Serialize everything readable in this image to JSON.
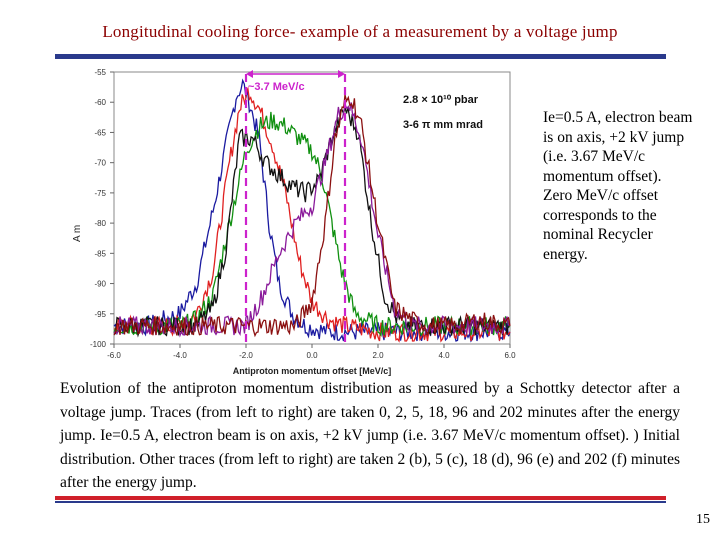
{
  "slide": {
    "title": "Longitudinal cooling force- example of a measurement by a voltage jump",
    "side_note": "Ie=0.5 A, electron beam is on axis, +2 kV jump (i.e. 3.67 MeV/c momentum offset). Zero MeV/c offset corresponds to the nominal Recycler energy.",
    "caption": "Evolution of the antiproton momentum distribution as measured by a Schottky detector after a voltage jump. Traces (from left to right) are taken 0, 2, 5, 18, 96 and 202 minutes after the energy jump. Ie=0.5 A, electron beam is on axis, +2 kV jump (i.e. 3.67 MeV/c momentum offset). ) Initial distribution. Other traces (from left to right) are taken 2 (b), 5 (c), 18 (d), 96 (e) and 202 (f) minutes after the energy jump.",
    "page_number": "15"
  },
  "colors": {
    "title": "#8b0000",
    "top_bar": "#2a3a8c",
    "bottom_bar_red": "#d0202a",
    "annotation": "#cc22cc"
  },
  "chart_data": {
    "type": "line",
    "title": "",
    "xlabel": "Antiproton momentum offset [MeV/c]",
    "ylabel": "A m",
    "xlim": [
      -6.0,
      6.0
    ],
    "ylim": [
      -100,
      -55
    ],
    "x_ticks": [
      "-6.0",
      "-4.0",
      "-2.0",
      "0.0",
      "2.0",
      "4.0",
      "6.0"
    ],
    "y_ticks": [
      "-55",
      "-60",
      "-65",
      "-70",
      "-75",
      "-80",
      "-85",
      "-90",
      "-95",
      "-100"
    ],
    "annotations": {
      "offset_label": "~3.7 MeV/c",
      "pbar_label": "2.8 × 10¹⁰ pbar",
      "emittance_label": "3-6 π mm mrad",
      "left_marker_x": -2.0,
      "right_marker_x": 1.0
    },
    "series": [
      {
        "name": "0 min",
        "color": "#1a1aa0",
        "x": [
          -6,
          -5,
          -4.5,
          -4,
          -3.5,
          -3,
          -2.6,
          -2.3,
          -2.1,
          -1.9,
          -1.6,
          -1.3,
          -1,
          -0.6,
          -0.2,
          0.5,
          2,
          4,
          6
        ],
        "values": [
          -97,
          -97,
          -96,
          -95,
          -90,
          -78,
          -67,
          -59,
          -57,
          -60,
          -66,
          -80,
          -90,
          -95,
          -97,
          -98,
          -98,
          -98,
          -98
        ]
      },
      {
        "name": "2 min",
        "color": "#e02020",
        "x": [
          -6,
          -4,
          -3.5,
          -3,
          -2.5,
          -2.2,
          -1.9,
          -1.6,
          -1.2,
          -0.8,
          -0.4,
          0,
          0.5,
          1,
          2,
          4,
          6
        ],
        "values": [
          -97,
          -97,
          -95,
          -88,
          -70,
          -61,
          -58,
          -61,
          -67,
          -75,
          -86,
          -93,
          -96,
          -97,
          -98,
          -98,
          -98
        ]
      },
      {
        "name": "5 min",
        "color": "#109010",
        "x": [
          -6,
          -4,
          -3.5,
          -3,
          -2.5,
          -2,
          -1.6,
          -1.2,
          -0.8,
          -0.4,
          0,
          0.3,
          0.6,
          0.9,
          1.3,
          2,
          4,
          6
        ],
        "values": [
          -97,
          -97,
          -96,
          -92,
          -80,
          -68,
          -64,
          -63,
          -64,
          -66,
          -68,
          -72,
          -80,
          -88,
          -95,
          -97,
          -97,
          -97
        ]
      },
      {
        "name": "18 min",
        "color": "#111111",
        "x": [
          -6,
          -3.5,
          -3,
          -2.6,
          -2.2,
          -1.8,
          -1.4,
          -1,
          -0.6,
          -0.2,
          0.2,
          0.6,
          1,
          1.4,
          1.8,
          2.2,
          2.6,
          3,
          4,
          6
        ],
        "values": [
          -97,
          -97,
          -94,
          -84,
          -66,
          -66,
          -70,
          -72,
          -74,
          -75,
          -73,
          -66,
          -61,
          -65,
          -80,
          -92,
          -96,
          -97,
          -97,
          -97
        ]
      },
      {
        "name": "96 min",
        "color": "#8a1a9a",
        "x": [
          -6,
          -2,
          -1.5,
          -1,
          -0.5,
          0,
          0.4,
          0.8,
          1.1,
          1.5,
          2,
          2.5,
          3,
          4,
          6
        ],
        "values": [
          -97,
          -97,
          -92,
          -85,
          -80,
          -77,
          -70,
          -62,
          -60,
          -66,
          -82,
          -94,
          -97,
          -97,
          -97
        ]
      },
      {
        "name": "202 min",
        "color": "#8b1010",
        "x": [
          -6,
          -0.5,
          0,
          0.4,
          0.7,
          1,
          1.2,
          1.5,
          2,
          2.5,
          3,
          3.5,
          4,
          4.5,
          5,
          6
        ],
        "values": [
          -97,
          -97,
          -93,
          -80,
          -66,
          -60,
          -59,
          -64,
          -80,
          -94,
          -96,
          -97,
          -97,
          -97,
          -96,
          -97
        ]
      }
    ]
  }
}
